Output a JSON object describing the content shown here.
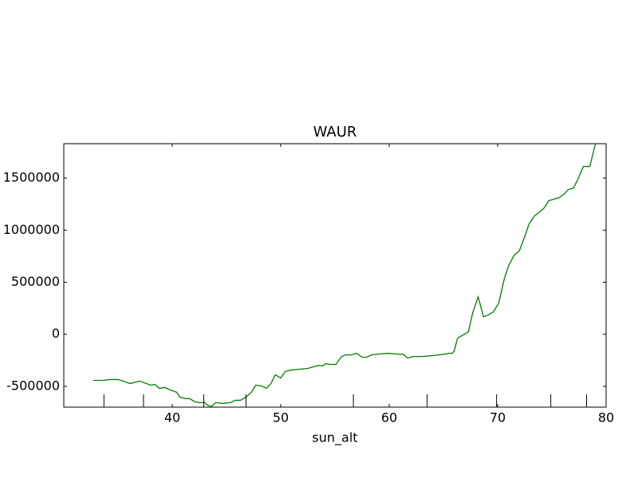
{
  "chart_data": {
    "type": "line",
    "title": "WAUR",
    "xlabel": "sun_alt",
    "xlim": [
      30,
      80
    ],
    "xticks": [
      40,
      50,
      60,
      70,
      80
    ],
    "ylim": [
      -700000,
      1830000
    ],
    "yticks": [
      -500000,
      0,
      500000,
      1000000,
      1500000
    ],
    "rug_x": [
      33.7,
      37.35,
      42.9,
      46.8,
      56.7,
      63.5,
      69.9,
      74.9,
      78.2
    ],
    "series": [
      {
        "color": "#008000",
        "x": [
          32.7,
          33.7,
          34.2,
          35.0,
          35.5,
          36.1,
          37.0,
          37.6,
          38.0,
          38.4,
          38.8,
          39.3,
          39.8,
          40.4,
          40.7,
          41.2,
          41.6,
          42.1,
          42.5,
          43.0,
          43.2,
          43.6,
          44.0,
          44.6,
          45.4,
          45.8,
          46.3,
          46.8,
          47.3,
          47.7,
          48.2,
          48.7,
          49.1,
          49.5,
          50.0,
          50.4,
          50.9,
          51.7,
          52.5,
          53.0,
          53.5,
          53.8,
          54.2,
          54.6,
          55.1,
          55.6,
          56.0,
          56.5,
          57.0,
          57.5,
          57.9,
          58.4,
          58.9,
          59.9,
          60.9,
          61.3,
          61.7,
          62.2,
          63.0,
          63.9,
          64.6,
          65.1,
          65.5,
          65.8,
          66.0,
          66.3,
          66.8,
          67.3,
          67.7,
          68.2,
          68.7,
          69.1,
          69.6,
          70.1,
          70.6,
          71.0,
          71.5,
          72.0,
          72.5,
          72.9,
          73.4,
          73.8,
          74.3,
          74.7,
          75.2,
          75.7,
          76.1,
          76.5,
          77.0,
          77.4,
          77.9,
          78.5,
          79.0
        ],
        "values": [
          -443000,
          -443000,
          -435000,
          -435000,
          -450000,
          -473000,
          -450000,
          -473000,
          -489000,
          -481000,
          -519000,
          -511000,
          -534000,
          -557000,
          -603000,
          -618000,
          -618000,
          -649000,
          -656000,
          -656000,
          -679000,
          -695000,
          -656000,
          -664000,
          -656000,
          -634000,
          -634000,
          -603000,
          -557000,
          -489000,
          -496000,
          -519000,
          -473000,
          -389000,
          -420000,
          -359000,
          -344000,
          -336000,
          -328000,
          -313000,
          -298000,
          -305000,
          -282000,
          -290000,
          -290000,
          -214000,
          -198000,
          -198000,
          -183000,
          -221000,
          -221000,
          -198000,
          -191000,
          -183000,
          -191000,
          -191000,
          -229000,
          -214000,
          -214000,
          -206000,
          -198000,
          -191000,
          -183000,
          -183000,
          -160000,
          -38000,
          -8000,
          23000,
          206000,
          359000,
          168000,
          183000,
          214000,
          298000,
          527000,
          656000,
          756000,
          802000,
          939000,
          1061000,
          1137000,
          1168000,
          1214000,
          1282000,
          1298000,
          1313000,
          1344000,
          1389000,
          1405000,
          1489000,
          1611000,
          1611000,
          1824000
        ]
      }
    ]
  }
}
